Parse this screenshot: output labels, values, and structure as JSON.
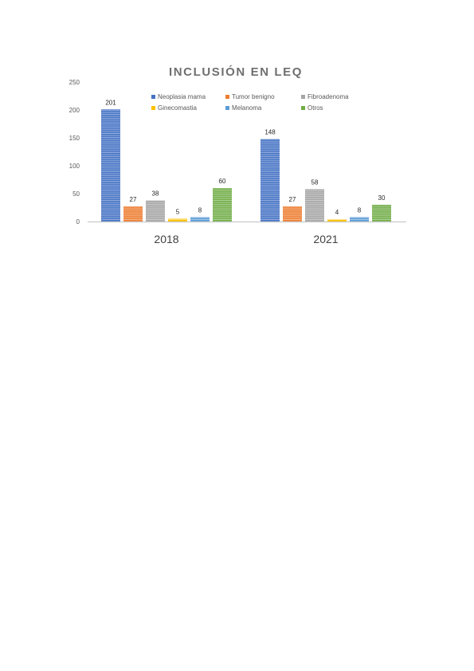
{
  "chart_data": {
    "type": "bar",
    "title": "INCLUSIÓN EN LEQ",
    "categories": [
      "2018",
      "2021"
    ],
    "series": [
      {
        "name": "Neoplasia mama",
        "values": [
          201,
          148
        ],
        "color": "#4472C4"
      },
      {
        "name": "Tumor benigno",
        "values": [
          27,
          27
        ],
        "color": "#ED7D31"
      },
      {
        "name": "Fibroadenoma",
        "values": [
          38,
          58
        ],
        "color": "#A5A5A5"
      },
      {
        "name": "Ginecomastia",
        "values": [
          5,
          4
        ],
        "color": "#FFC000"
      },
      {
        "name": "Melanoma",
        "values": [
          8,
          8
        ],
        "color": "#5B9BD5"
      },
      {
        "name": "Otros",
        "values": [
          60,
          30
        ],
        "color": "#70AD47"
      }
    ],
    "ylim": [
      0,
      250
    ],
    "yticks": [
      "0",
      "50",
      "100",
      "150",
      "200",
      "250"
    ],
    "xlabel": "",
    "ylabel": "",
    "grid": false,
    "legend": "top-inside",
    "data_labels": true,
    "bar_pattern": "horizontal-stripes"
  }
}
